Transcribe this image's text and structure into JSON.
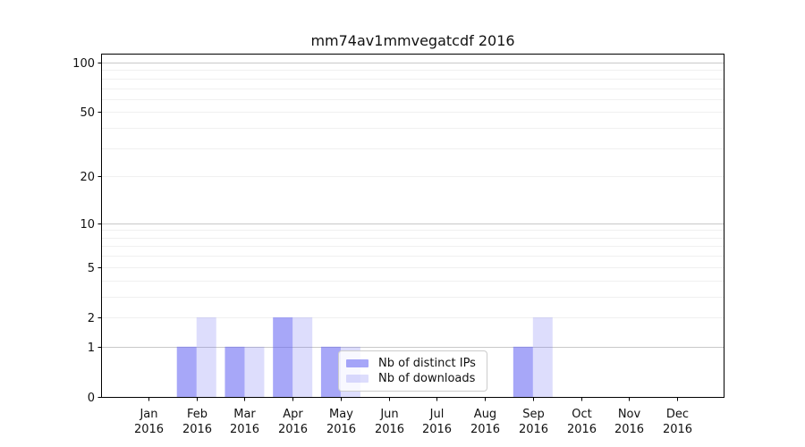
{
  "chart_data": {
    "type": "bar",
    "title": "mm74av1mmvegatcdf 2016",
    "categories": [
      "Jan 2016",
      "Feb 2016",
      "Mar 2016",
      "Apr 2016",
      "May 2016",
      "Jun 2016",
      "Jul 2016",
      "Aug 2016",
      "Sep 2016",
      "Oct 2016",
      "Nov 2016",
      "Dec 2016"
    ],
    "x_tick_months": [
      "Jan",
      "Feb",
      "Mar",
      "Apr",
      "May",
      "Jun",
      "Jul",
      "Aug",
      "Sep",
      "Oct",
      "Nov",
      "Dec"
    ],
    "x_tick_year": "2016",
    "series": [
      {
        "name": "Nb of distinct IPs",
        "color": "#6262f2",
        "alpha": 0.56,
        "swatch_hex": "#a7a7f7",
        "values": [
          0,
          1,
          1,
          2,
          1,
          0,
          0,
          0,
          1,
          0,
          0,
          0
        ]
      },
      {
        "name": "Nb of downloads",
        "color": "#6262f2",
        "alpha": 0.22,
        "swatch_hex": "#ddddfc",
        "values": [
          0,
          2,
          1,
          2,
          1,
          0,
          0,
          0,
          2,
          0,
          0,
          0
        ]
      }
    ],
    "yticks": [
      0,
      1,
      2,
      5,
      10,
      20,
      50,
      100
    ],
    "ylim": [
      0,
      100
    ],
    "yscale": "log1p",
    "grid": "on",
    "grid_major_values": [
      1,
      10,
      100
    ],
    "grid_minor_values": [
      2,
      3,
      4,
      5,
      6,
      7,
      8,
      9,
      20,
      30,
      40,
      50,
      60,
      70,
      80,
      90
    ],
    "grid_major_color": "#c9c9c9",
    "grid_minor_color": "#f0f0f0",
    "legend_position": "inside lower-center",
    "xlabel": "",
    "ylabel": ""
  }
}
